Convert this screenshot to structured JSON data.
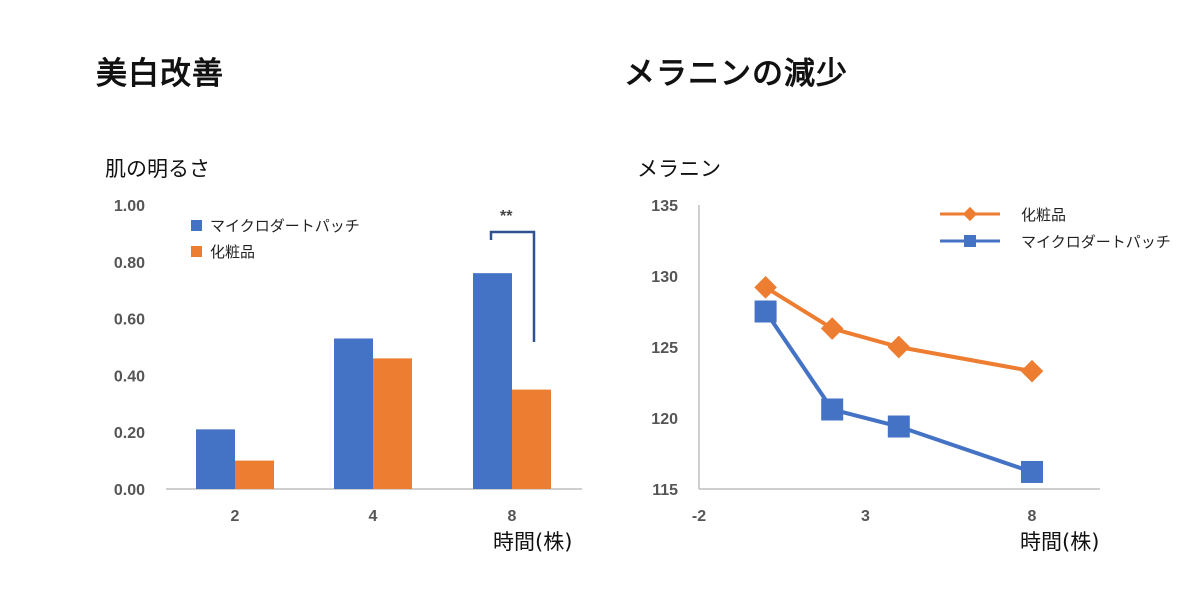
{
  "titles": {
    "left": "美白改善",
    "right": "メラニンの減少"
  },
  "colors": {
    "blue": "#4472C4",
    "orange": "#ED7D31",
    "axis": "#bfbfbf"
  },
  "chart_data": [
    {
      "type": "bar",
      "title": "美白改善",
      "ylabel": "肌の明るさ",
      "xlabel": "時間(株)",
      "categories": [
        "2",
        "4",
        "8"
      ],
      "ylim": [
        0,
        1
      ],
      "yticks": [
        "1.00",
        "0.80",
        "0.60",
        "0.40",
        "0.20",
        "0.00"
      ],
      "series": [
        {
          "name": "マイクロダートパッチ",
          "color": "#4472C4",
          "values": [
            0.21,
            0.53,
            0.76
          ]
        },
        {
          "name": "化粧品",
          "color": "#ED7D31",
          "values": [
            0.1,
            0.46,
            0.35
          ]
        }
      ],
      "annotation": "**",
      "legend": "top-left"
    },
    {
      "type": "line",
      "title": "メラニンの減少",
      "ylabel": "メラニン",
      "xlabel": "時間(株)",
      "xlim": [
        -2,
        8
      ],
      "ylim": [
        115,
        135
      ],
      "xticks": [
        "-2",
        "3",
        "8"
      ],
      "yticks": [
        "135",
        "130",
        "125",
        "120",
        "115"
      ],
      "series": [
        {
          "name": "化粧品",
          "color": "#ED7D31",
          "marker": "diamond",
          "x": [
            0,
            2,
            4,
            8
          ],
          "y": [
            129.2,
            126.3,
            125.0,
            123.3
          ]
        },
        {
          "name": "マイクロダートパッチ",
          "color": "#4472C4",
          "marker": "square",
          "x": [
            0,
            2,
            4,
            8
          ],
          "y": [
            127.5,
            120.6,
            119.4,
            116.2
          ]
        }
      ],
      "legend": "top-right"
    }
  ]
}
